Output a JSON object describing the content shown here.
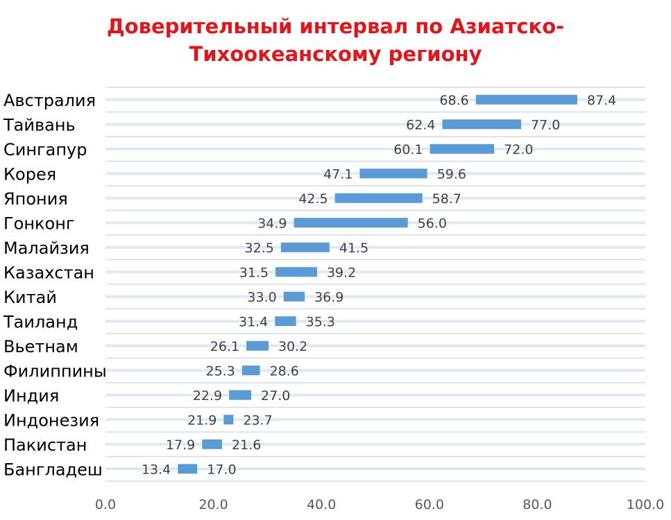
{
  "chart_data": {
    "type": "bar",
    "subtype": "floating-range-horizontal",
    "title_lines": [
      "Доверительный интервал по Азиатско-",
      "Тихоокеанскому региону"
    ],
    "categories": [
      "Австралия",
      "Тайвань",
      "Сингапур",
      "Корея",
      "Япония",
      "Гонконг",
      "Малайзия",
      "Казахстан",
      "Китай",
      "Таиланд",
      "Вьетнам",
      "Филиппины",
      "Индия",
      "Индонезия",
      "Пакистан",
      "Бангладеш"
    ],
    "low": [
      68.6,
      62.4,
      60.1,
      47.1,
      42.5,
      34.9,
      32.5,
      31.5,
      33.0,
      31.4,
      26.1,
      25.3,
      22.9,
      21.9,
      17.9,
      13.4
    ],
    "high": [
      87.4,
      77.0,
      72.0,
      59.6,
      58.7,
      56.0,
      41.5,
      39.2,
      36.9,
      35.3,
      30.2,
      28.6,
      27.0,
      23.7,
      21.6,
      17.0
    ],
    "low_labels": [
      "68.6",
      "62.4",
      "60.1",
      "47.1",
      "42.5",
      "34.9",
      "32.5",
      "31.5",
      "33.0",
      "31.4",
      "26.1",
      "25.3",
      "22.9",
      "21.9",
      "17.9",
      "13.4"
    ],
    "high_labels": [
      "87.4",
      "77.0",
      "72.0",
      "59.6",
      "58.7",
      "56.0",
      "41.5",
      "39.2",
      "36.9",
      "35.3",
      "30.2",
      "28.6",
      "27.0",
      "23.7",
      "21.6",
      "17.0"
    ],
    "xlim": [
      0,
      100
    ],
    "xticks": [
      0,
      20,
      40,
      60,
      80,
      100
    ],
    "xtick_labels": [
      "0.0",
      "20.0",
      "40.0",
      "60.0",
      "80.0",
      "100.0"
    ],
    "grid": true,
    "legend": "none",
    "colors": {
      "bar": "#5b9bd5",
      "title": "#e3151a",
      "grid": "#d9d9d9",
      "band": "#dfe9f5"
    }
  }
}
